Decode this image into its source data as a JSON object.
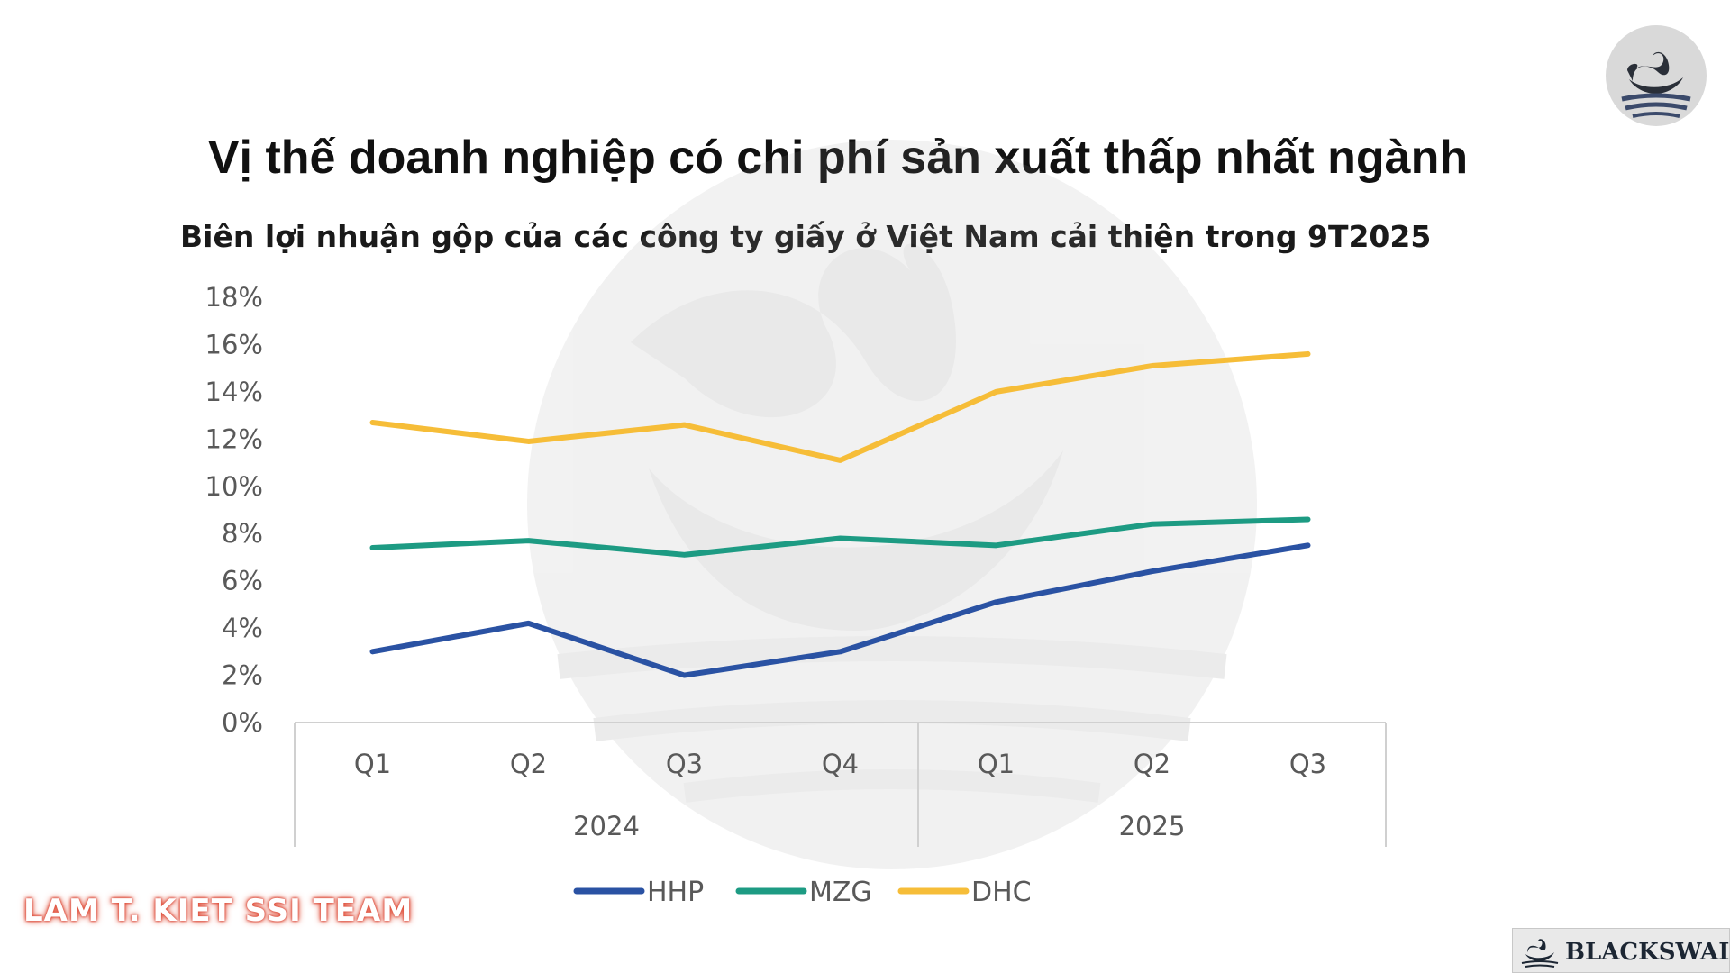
{
  "title": "Vị thế doanh nghiệp có chi phí sản xuất thấp nhất ngành",
  "team_tag": "LAM T. KIET SSI TEAM",
  "brand": "BLACKSWAIN",
  "colors": {
    "hhp": "#2a52a3",
    "mzg": "#1d9b83",
    "dhc": "#f6bd38",
    "axis": "#d0d0d0",
    "tick": "#595959"
  },
  "chart_data": {
    "type": "line",
    "title": "Biên lợi nhuận gộp của các công ty giấy ở Việt Nam cải thiện trong 9T2025",
    "categories": [
      "Q1",
      "Q2",
      "Q3",
      "Q4",
      "Q1",
      "Q2",
      "Q3"
    ],
    "groups": [
      {
        "label": "2024",
        "count": 4
      },
      {
        "label": "2025",
        "count": 3
      }
    ],
    "yticks": [
      "0%",
      "2%",
      "4%",
      "6%",
      "8%",
      "10%",
      "12%",
      "14%",
      "16%",
      "18%"
    ],
    "ylim": [
      0,
      18
    ],
    "series": [
      {
        "name": "HHP",
        "color": "#2a52a3",
        "values": [
          3.0,
          4.2,
          2.0,
          3.0,
          5.1,
          6.4,
          7.5
        ]
      },
      {
        "name": "MZG",
        "color": "#1d9b83",
        "values": [
          7.4,
          7.7,
          7.1,
          7.8,
          7.5,
          8.4,
          8.6
        ]
      },
      {
        "name": "DHC",
        "color": "#f6bd38",
        "values": [
          12.7,
          11.9,
          12.6,
          11.1,
          14.0,
          15.1,
          15.6
        ]
      }
    ],
    "legend": "bottom",
    "grid": false
  }
}
